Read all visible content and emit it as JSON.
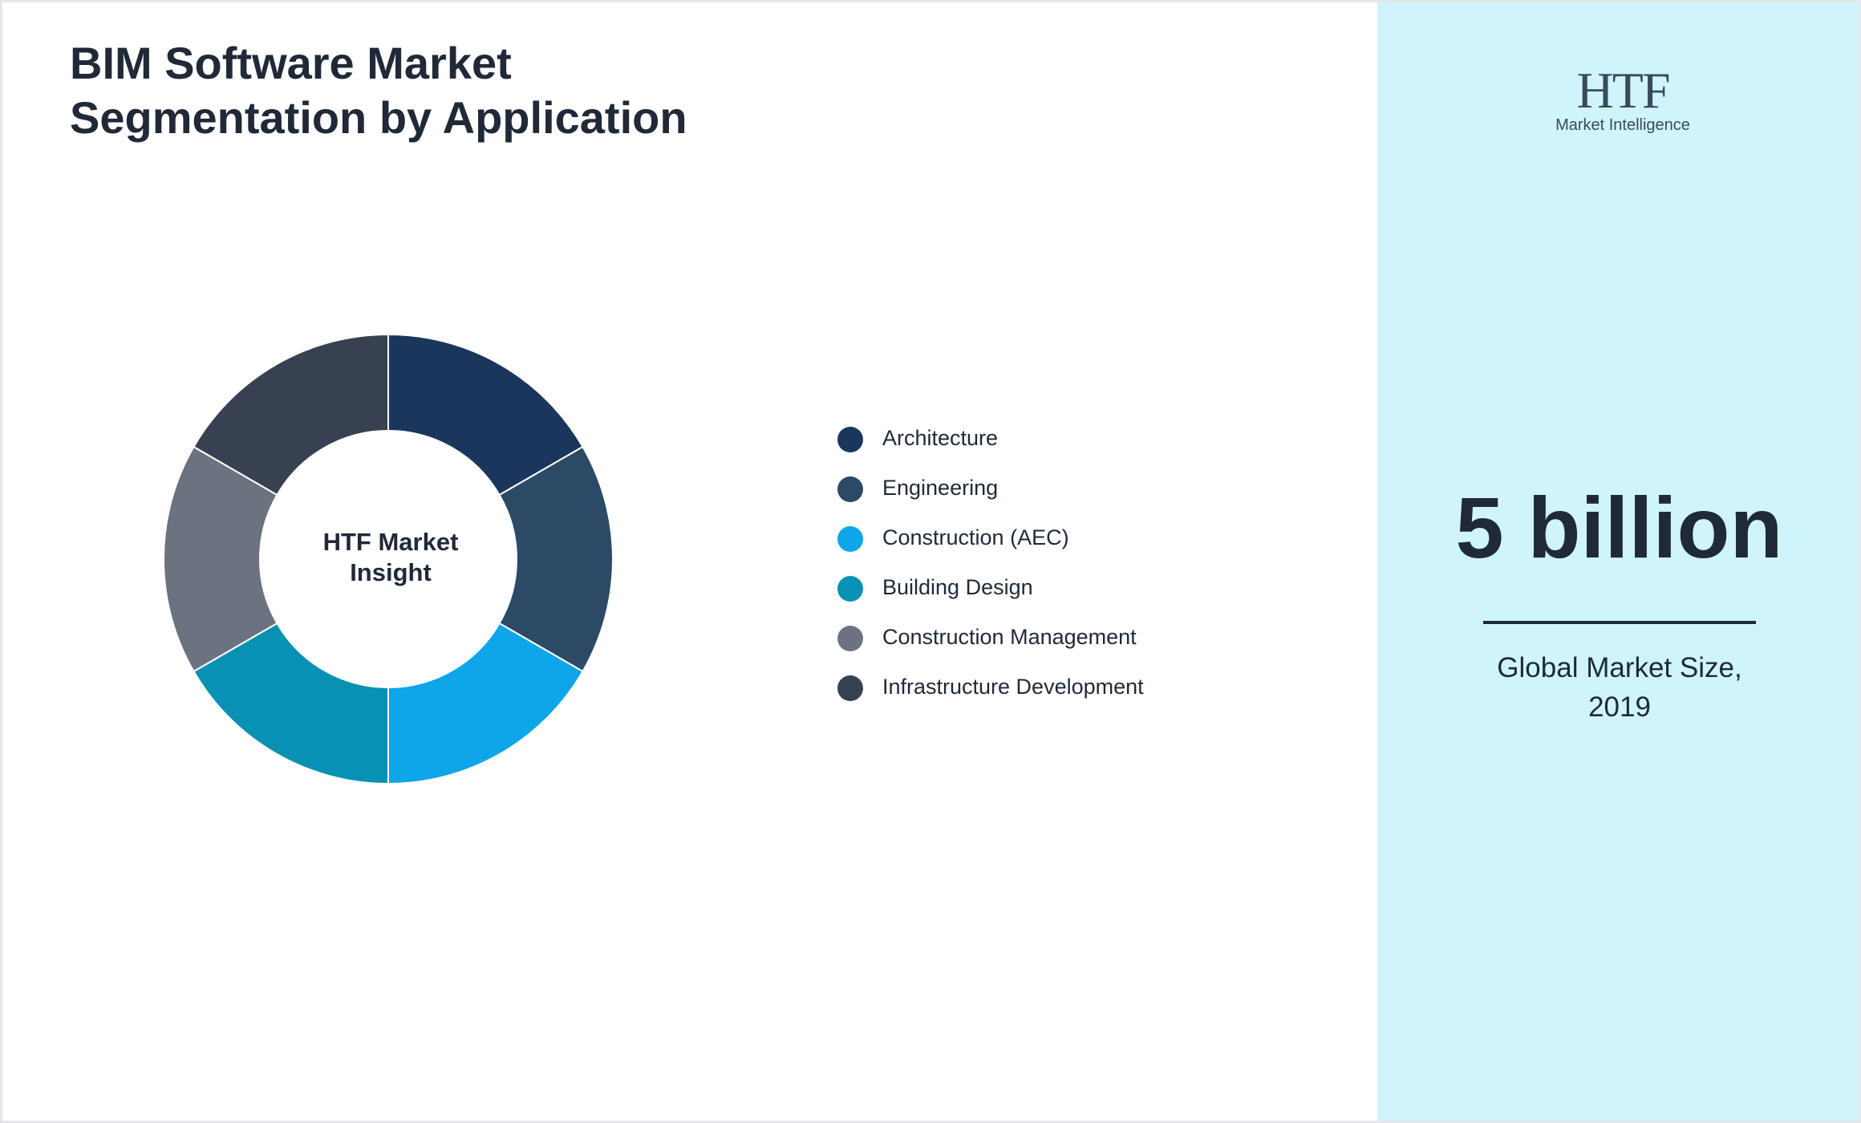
{
  "chart_data": {
    "type": "donut",
    "title": "BIM Software Market Segmentation by Application",
    "center_label": "HTF Market Insight",
    "categories": [
      "Architecture",
      "Engineering",
      "Construction (AEC)",
      "Building Design",
      "Construction Management",
      "Infrastructure Development"
    ],
    "values": [
      16.67,
      16.67,
      16.67,
      16.67,
      16.67,
      16.67
    ],
    "colors": [
      "#1b365d",
      "#2c4a66",
      "#0ea5e9",
      "#0891b2",
      "#6b7280",
      "#374151"
    ]
  },
  "logo": {
    "text": "HTF",
    "subtext": "Market Intelligence"
  },
  "kpi": {
    "value": "5 billion",
    "label": "Global Market Size, 2019"
  }
}
